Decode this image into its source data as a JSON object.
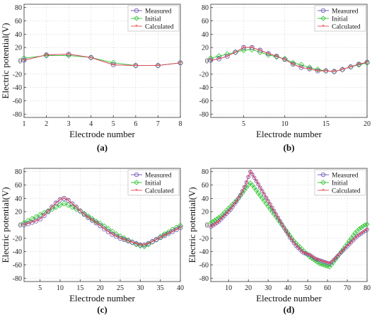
{
  "chart_data": [
    {
      "type": "line",
      "panel_label": "(a)",
      "xlabel": "Electrode number",
      "ylabel": "Electric potential(V)",
      "xlim": [
        1,
        8
      ],
      "ylim": [
        -85,
        85
      ],
      "xticks": [
        1,
        2,
        3,
        4,
        5,
        6,
        7,
        8
      ],
      "yticks": [
        -80,
        -60,
        -40,
        -20,
        0,
        20,
        40,
        60,
        80
      ],
      "grid": true,
      "legend_position": "top-right",
      "x": [
        1,
        2,
        3,
        4,
        5,
        6,
        7,
        8
      ],
      "series": [
        {
          "name": "Measured",
          "values": [
            1,
            9,
            10,
            5,
            -6,
            -7,
            -7,
            -3
          ]
        },
        {
          "name": "Initial",
          "values": [
            4,
            8,
            8,
            5,
            -3,
            -7,
            -7,
            -3
          ]
        },
        {
          "name": "Calculated",
          "values": [
            1,
            9,
            10,
            5,
            -6,
            -7,
            -7,
            -3
          ]
        }
      ]
    },
    {
      "type": "line",
      "panel_label": "(b)",
      "xlabel": "Electrode number",
      "ylabel": "",
      "xlim": [
        1,
        20
      ],
      "ylim": [
        -85,
        85
      ],
      "xticks": [
        5,
        10,
        15,
        20
      ],
      "yticks": [
        -80,
        -60,
        -40,
        -20,
        0,
        20,
        40,
        60,
        80
      ],
      "grid": true,
      "legend_position": "top-right",
      "x": [
        1,
        2,
        3,
        4,
        5,
        6,
        7,
        8,
        9,
        10,
        11,
        12,
        13,
        14,
        15,
        16,
        17,
        18,
        19,
        20
      ],
      "series": [
        {
          "name": "Measured",
          "values": [
            1,
            3,
            7,
            13,
            20,
            20,
            16,
            11,
            7,
            2,
            -5,
            -10,
            -12,
            -15,
            -15,
            -16,
            -13,
            -9,
            -5,
            -2
          ]
        },
        {
          "name": "Initial",
          "values": [
            4,
            7,
            10,
            13,
            16,
            17,
            13,
            9,
            6,
            3,
            -3,
            -6,
            -10,
            -13,
            -15,
            -16,
            -13,
            -9,
            -6,
            -3
          ]
        },
        {
          "name": "Calculated",
          "values": [
            1,
            3,
            7,
            13,
            20,
            20,
            16,
            11,
            7,
            2,
            -5,
            -10,
            -12,
            -15,
            -15,
            -16,
            -13,
            -9,
            -5,
            -2
          ]
        }
      ]
    },
    {
      "type": "line",
      "panel_label": "(c)",
      "xlabel": "Electrode number",
      "ylabel": "Electric potential(V)",
      "xlim": [
        1,
        40
      ],
      "ylim": [
        -85,
        85
      ],
      "xticks": [
        5,
        10,
        15,
        20,
        25,
        30,
        35,
        40
      ],
      "yticks": [
        -80,
        -60,
        -40,
        -20,
        0,
        20,
        40,
        60,
        80
      ],
      "grid": true,
      "legend_position": "top-right",
      "x": [
        1,
        2,
        3,
        4,
        5,
        6,
        7,
        8,
        9,
        10,
        11,
        12,
        13,
        14,
        15,
        16,
        17,
        18,
        19,
        20,
        21,
        22,
        23,
        24,
        25,
        26,
        27,
        28,
        29,
        30,
        31,
        32,
        33,
        34,
        35,
        36,
        37,
        38,
        39,
        40
      ],
      "series": [
        {
          "name": "Measured",
          "values": [
            0,
            2,
            4,
            6,
            9,
            14,
            20,
            27,
            33,
            38,
            40,
            37,
            32,
            27,
            21,
            16,
            11,
            7,
            3,
            -1,
            -6,
            -10,
            -14,
            -17,
            -20,
            -22,
            -24,
            -26,
            -28,
            -30,
            -30,
            -28,
            -25,
            -22,
            -19,
            -16,
            -13,
            -10,
            -7,
            -4
          ]
        },
        {
          "name": "Initial",
          "values": [
            3,
            6,
            9,
            12,
            15,
            18,
            21,
            24,
            27,
            30,
            32,
            30,
            27,
            24,
            21,
            17,
            13,
            9,
            5,
            2,
            -2,
            -6,
            -10,
            -14,
            -17,
            -20,
            -23,
            -26,
            -29,
            -31,
            -32,
            -29,
            -25,
            -22,
            -18,
            -14,
            -11,
            -7,
            -4,
            -1
          ]
        },
        {
          "name": "Calculated",
          "values": [
            0,
            2,
            4,
            6,
            9,
            14,
            20,
            27,
            33,
            38,
            40,
            37,
            32,
            27,
            21,
            16,
            11,
            7,
            3,
            -1,
            -6,
            -10,
            -14,
            -17,
            -20,
            -22,
            -24,
            -26,
            -28,
            -30,
            -30,
            -28,
            -25,
            -22,
            -19,
            -16,
            -13,
            -10,
            -7,
            -4
          ]
        }
      ]
    },
    {
      "type": "line",
      "panel_label": "(d)",
      "xlabel": "Electrode number",
      "ylabel": "Electric potential(V)",
      "xlim": [
        1,
        80
      ],
      "ylim": [
        -85,
        85
      ],
      "xticks": [
        10,
        20,
        30,
        40,
        50,
        60,
        70,
        80
      ],
      "yticks": [
        -80,
        -60,
        -40,
        -20,
        0,
        20,
        40,
        60,
        80
      ],
      "grid": true,
      "legend_position": "top-right",
      "x": [
        1,
        2,
        3,
        4,
        5,
        6,
        7,
        8,
        9,
        10,
        11,
        12,
        13,
        14,
        15,
        16,
        17,
        18,
        19,
        20,
        21,
        22,
        23,
        24,
        25,
        26,
        27,
        28,
        29,
        30,
        31,
        32,
        33,
        34,
        35,
        36,
        37,
        38,
        39,
        40,
        41,
        42,
        43,
        44,
        45,
        46,
        47,
        48,
        49,
        50,
        51,
        52,
        53,
        54,
        55,
        56,
        57,
        58,
        59,
        60,
        61,
        62,
        63,
        64,
        65,
        66,
        67,
        68,
        69,
        70,
        71,
        72,
        73,
        74,
        75,
        76,
        77,
        78,
        79,
        80
      ],
      "series": [
        {
          "name": "Measured",
          "values": [
            -3,
            -1,
            1,
            3,
            5,
            8,
            11,
            14,
            17,
            20,
            23,
            27,
            31,
            35,
            40,
            45,
            51,
            57,
            64,
            72,
            80,
            76,
            71,
            66,
            61,
            56,
            51,
            46,
            41,
            36,
            31,
            26,
            21,
            16,
            11,
            6,
            1,
            -4,
            -9,
            -14,
            -19,
            -23,
            -27,
            -31,
            -34,
            -37,
            -40,
            -42,
            -43,
            -44,
            -45,
            -47,
            -49,
            -51,
            -52,
            -53,
            -54,
            -55,
            -56,
            -57,
            -58,
            -56,
            -53,
            -50,
            -47,
            -44,
            -41,
            -38,
            -35,
            -32,
            -29,
            -26,
            -23,
            -20,
            -17,
            -15,
            -13,
            -11,
            -9,
            -7
          ]
        },
        {
          "name": "Initial",
          "values": [
            3,
            5,
            7,
            9,
            11,
            13,
            16,
            19,
            22,
            25,
            28,
            31,
            34,
            37,
            40,
            44,
            48,
            52,
            56,
            60,
            63,
            60,
            56,
            52,
            48,
            44,
            40,
            36,
            32,
            28,
            24,
            20,
            16,
            12,
            8,
            4,
            0,
            -4,
            -8,
            -12,
            -16,
            -20,
            -24,
            -27,
            -30,
            -33,
            -36,
            -39,
            -42,
            -45,
            -48,
            -50,
            -52,
            -54,
            -56,
            -58,
            -59,
            -60,
            -61,
            -62,
            -63,
            -60,
            -56,
            -52,
            -48,
            -44,
            -40,
            -36,
            -32,
            -28,
            -24,
            -20,
            -16,
            -12,
            -9,
            -6,
            -4,
            -2,
            0,
            1
          ]
        },
        {
          "name": "Calculated",
          "values": [
            -3,
            -1,
            1,
            3,
            5,
            8,
            11,
            14,
            17,
            20,
            23,
            27,
            31,
            35,
            40,
            45,
            51,
            57,
            64,
            72,
            80,
            76,
            71,
            66,
            61,
            56,
            51,
            46,
            41,
            36,
            31,
            26,
            21,
            16,
            11,
            6,
            1,
            -4,
            -9,
            -14,
            -19,
            -23,
            -27,
            -31,
            -34,
            -37,
            -40,
            -42,
            -43,
            -44,
            -45,
            -47,
            -49,
            -51,
            -52,
            -53,
            -54,
            -55,
            -56,
            -57,
            -58,
            -56,
            -53,
            -50,
            -47,
            -44,
            -41,
            -38,
            -35,
            -32,
            -29,
            -26,
            -23,
            -20,
            -17,
            -15,
            -13,
            -11,
            -9,
            -7
          ]
        }
      ]
    }
  ],
  "colors": {
    "Measured": "#6a4fb3",
    "Initial": "#2ec42e",
    "Calculated": "#e8474f",
    "grid": "#d9d9d9",
    "axis": "#333333"
  }
}
